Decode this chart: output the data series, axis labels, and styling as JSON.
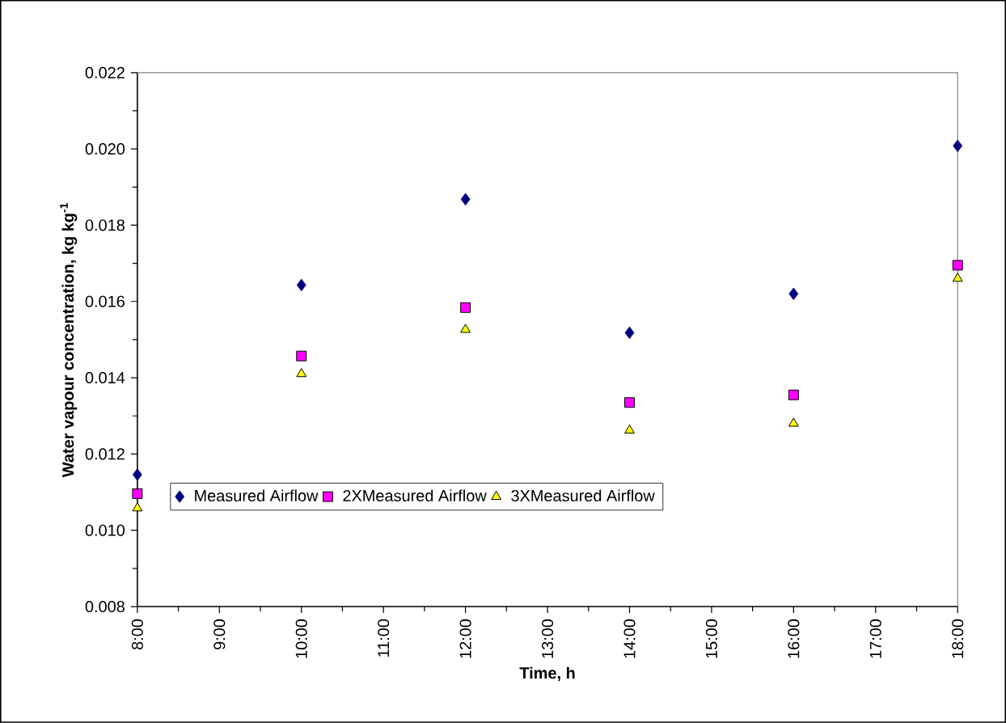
{
  "chart_data": {
    "type": "scatter",
    "xlabel": "Time, h",
    "ylabel": "Water vapour concentration, kg kg$^{-1}$",
    "x": [
      8,
      10,
      12,
      14,
      16,
      18
    ],
    "series": [
      {
        "name": "Measured Airflow",
        "color": "#000080",
        "marker": "diamond",
        "values": [
          0.01146,
          0.01643,
          0.01868,
          0.01518,
          0.0162,
          0.02008
        ]
      },
      {
        "name": "2XMeasured Airflow",
        "color": "#ff00ff",
        "marker": "square",
        "values": [
          0.01096,
          0.01457,
          0.01584,
          0.01335,
          0.01355,
          0.01695
        ]
      },
      {
        "name": "3XMeasured Airflow",
        "color": "#ffff00",
        "marker": "triangle",
        "values": [
          0.01058,
          0.0141,
          0.01526,
          0.01262,
          0.0128,
          0.0166
        ]
      }
    ],
    "xlim": [
      8,
      18
    ],
    "xticks": [
      {
        "value": 8,
        "label": "8:00"
      },
      {
        "value": 9,
        "label": "9:00"
      },
      {
        "value": 10,
        "label": "10:00"
      },
      {
        "value": 11,
        "label": "11:00"
      },
      {
        "value": 12,
        "label": "12:00"
      },
      {
        "value": 13,
        "label": "13:00"
      },
      {
        "value": 14,
        "label": "14:00"
      },
      {
        "value": 15,
        "label": "15:00"
      },
      {
        "value": 16,
        "label": "16:00"
      },
      {
        "value": 17,
        "label": "17:00"
      },
      {
        "value": 18,
        "label": "18:00"
      }
    ],
    "ylim": [
      0.008,
      0.022
    ],
    "yticks": [
      0.008,
      {
        "value": 0.01,
        "label": "0.010"
      },
      0.012,
      0.014,
      0.016,
      0.018,
      {
        "value": 0.02,
        "label": "0.020"
      },
      0.022
    ],
    "grid": false,
    "legend": "bottom left"
  }
}
